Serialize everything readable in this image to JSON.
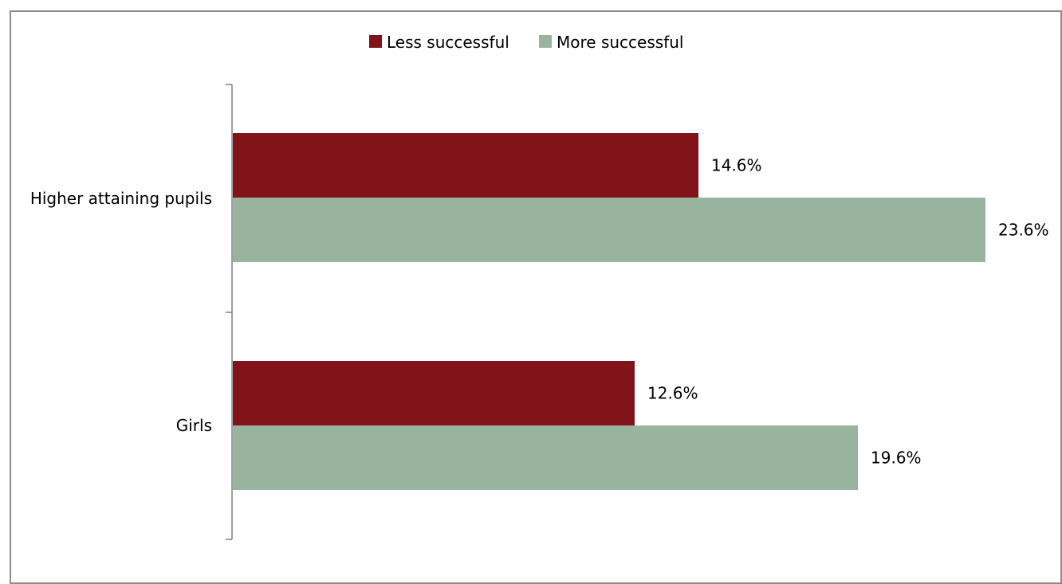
{
  "chart_data": {
    "type": "bar",
    "orientation": "horizontal",
    "categories": [
      "Higher attaining pupils",
      "Girls"
    ],
    "series": [
      {
        "name": "Less successful",
        "values": [
          14.6,
          12.6
        ],
        "labels": [
          "14.6%",
          "12.6%"
        ],
        "color": "#821419"
      },
      {
        "name": "More successful",
        "values": [
          23.6,
          19.6
        ],
        "labels": [
          "23.6%",
          "19.6%"
        ],
        "color": "#98b49e"
      }
    ],
    "xlim": [
      0,
      25
    ],
    "grid": false,
    "legend_position": "top"
  }
}
